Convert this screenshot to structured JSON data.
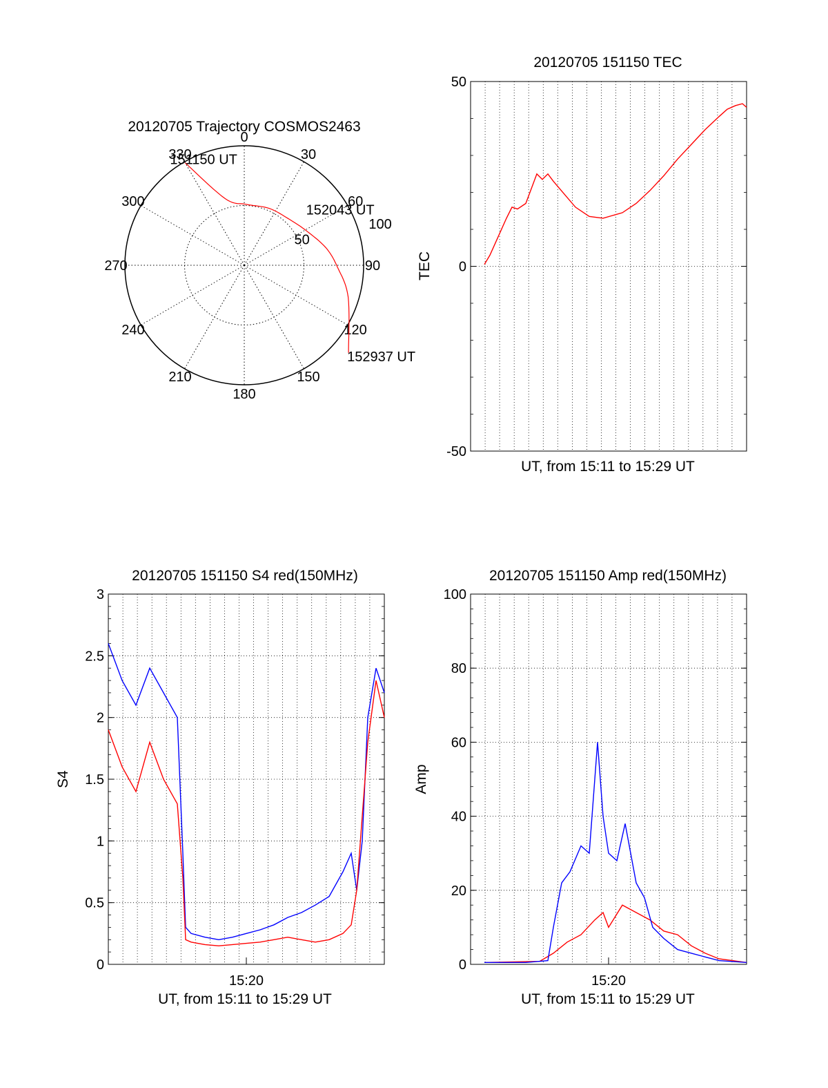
{
  "chart_data": [
    {
      "type": "polar",
      "title": "20120705 Trajectory COSMOS2463",
      "angle_labels": [
        "0",
        "30",
        "60",
        "90",
        "120",
        "150",
        "180",
        "210",
        "240",
        "270",
        "300",
        "330"
      ],
      "radial_labels": [
        {
          "text": "50",
          "value": 50
        },
        {
          "text": "100",
          "value": 100
        }
      ],
      "radial_max": 100,
      "trajectory": [
        {
          "azimuth": 330,
          "zenith": 99
        },
        {
          "azimuth": 344,
          "zenith": 58
        },
        {
          "azimuth": 2,
          "zenith": 51
        },
        {
          "azimuth": 24,
          "zenith": 52
        },
        {
          "azimuth": 45,
          "zenith": 54
        },
        {
          "azimuth": 62,
          "zenith": 60
        },
        {
          "azimuth": 78,
          "zenith": 70
        },
        {
          "azimuth": 91,
          "zenith": 78
        },
        {
          "azimuth": 107,
          "zenith": 91
        },
        {
          "azimuth": 130,
          "zenith": 114
        }
      ],
      "point_labels": [
        {
          "text": "151150 UT",
          "index": 0
        },
        {
          "text": "152043 UT",
          "index": 5
        },
        {
          "text": "152937 UT",
          "index": 9
        }
      ],
      "series_color": "#ff0000"
    },
    {
      "type": "line",
      "title": "20120705 151150 TEC",
      "xlabel": "UT, from 15:11 to 15:29 UT",
      "ylabel": "TEC",
      "xlim": [
        0,
        1.0
      ],
      "ylim": [
        -50,
        50
      ],
      "yticks": [
        "50",
        "0",
        "-50"
      ],
      "ytick_values": [
        50,
        0,
        -50
      ],
      "grid": true,
      "series": [
        {
          "color": "#ff0000",
          "x": [
            0.05,
            0.07,
            0.1,
            0.13,
            0.15,
            0.17,
            0.2,
            0.22,
            0.24,
            0.26,
            0.28,
            0.3,
            0.34,
            0.38,
            0.43,
            0.48,
            0.55,
            0.6,
            0.65,
            0.7,
            0.75,
            0.8,
            0.85,
            0.9,
            0.93,
            0.96,
            0.985,
            1.0
          ],
          "y": [
            0.5,
            3,
            8,
            13,
            16,
            15.5,
            17,
            21,
            25,
            23.5,
            25,
            23,
            19.5,
            16,
            13.5,
            13,
            14.5,
            17,
            20.5,
            24.5,
            29,
            33,
            37,
            40.5,
            42.5,
            43.5,
            44,
            43
          ]
        }
      ]
    },
    {
      "type": "line",
      "title": "20120705 151150 S4 red(150MHz)",
      "xlabel": "UT, from 15:11 to 15:29 UT",
      "ylabel": "S4",
      "xlim": [
        0,
        1.0
      ],
      "ylim": [
        0,
        3
      ],
      "xticks": [
        "15:20"
      ],
      "xtick_values": [
        0.5
      ],
      "yticks": [
        "0",
        "0.5",
        "1",
        "1.5",
        "2",
        "2.5",
        "3"
      ],
      "ytick_values": [
        0,
        0.5,
        1,
        1.5,
        2,
        2.5,
        3
      ],
      "grid": true,
      "series": [
        {
          "color": "#0000ff",
          "x": [
            0.0,
            0.05,
            0.1,
            0.15,
            0.2,
            0.25,
            0.27,
            0.28,
            0.3,
            0.35,
            0.4,
            0.45,
            0.5,
            0.55,
            0.6,
            0.65,
            0.7,
            0.75,
            0.8,
            0.85,
            0.88,
            0.9,
            0.92,
            0.94,
            0.97,
            1.0
          ],
          "y": [
            2.6,
            2.3,
            2.1,
            2.4,
            2.2,
            2.0,
            0.9,
            0.3,
            0.25,
            0.22,
            0.2,
            0.22,
            0.25,
            0.28,
            0.32,
            0.38,
            0.42,
            0.48,
            0.55,
            0.75,
            0.9,
            0.6,
            1.0,
            2.0,
            2.4,
            2.2
          ]
        },
        {
          "color": "#ff0000",
          "x": [
            0.0,
            0.05,
            0.1,
            0.15,
            0.2,
            0.25,
            0.27,
            0.28,
            0.3,
            0.35,
            0.4,
            0.45,
            0.5,
            0.55,
            0.6,
            0.65,
            0.7,
            0.75,
            0.8,
            0.85,
            0.88,
            0.9,
            0.92,
            0.94,
            0.97,
            1.0
          ],
          "y": [
            1.9,
            1.6,
            1.4,
            1.8,
            1.5,
            1.3,
            0.7,
            0.2,
            0.18,
            0.16,
            0.15,
            0.16,
            0.17,
            0.18,
            0.2,
            0.22,
            0.2,
            0.18,
            0.2,
            0.25,
            0.32,
            0.6,
            1.2,
            1.8,
            2.3,
            2.0
          ]
        }
      ]
    },
    {
      "type": "line",
      "title": "20120705 151150 Amp red(150MHz)",
      "xlabel": "UT, from 15:11 to 15:29 UT",
      "ylabel": "Amp",
      "xlim": [
        0,
        1.0
      ],
      "ylim": [
        0,
        100
      ],
      "xticks": [
        "15:20"
      ],
      "xtick_values": [
        0.5
      ],
      "yticks": [
        "0",
        "20",
        "40",
        "60",
        "80",
        "100"
      ],
      "ytick_values": [
        0,
        20,
        40,
        60,
        80,
        100
      ],
      "grid": true,
      "series": [
        {
          "color": "#ff0000",
          "x": [
            0.05,
            0.25,
            0.3,
            0.35,
            0.4,
            0.45,
            0.48,
            0.5,
            0.55,
            0.6,
            0.65,
            0.7,
            0.75,
            0.8,
            0.85,
            0.9,
            1.0
          ],
          "y": [
            0.5,
            0.8,
            3,
            6,
            8,
            12,
            14,
            10,
            16,
            14,
            12,
            9,
            8,
            5,
            3,
            1.5,
            0.5
          ]
        },
        {
          "color": "#0000ff",
          "x": [
            0.05,
            0.2,
            0.28,
            0.3,
            0.33,
            0.36,
            0.4,
            0.43,
            0.46,
            0.48,
            0.5,
            0.53,
            0.56,
            0.6,
            0.63,
            0.66,
            0.7,
            0.75,
            0.8,
            0.85,
            0.9,
            1.0
          ],
          "y": [
            0.5,
            0.5,
            1,
            10,
            22,
            25,
            32,
            30,
            60,
            40,
            30,
            28,
            38,
            22,
            18,
            10,
            7,
            4,
            3,
            2,
            1,
            0.5
          ]
        }
      ]
    }
  ]
}
